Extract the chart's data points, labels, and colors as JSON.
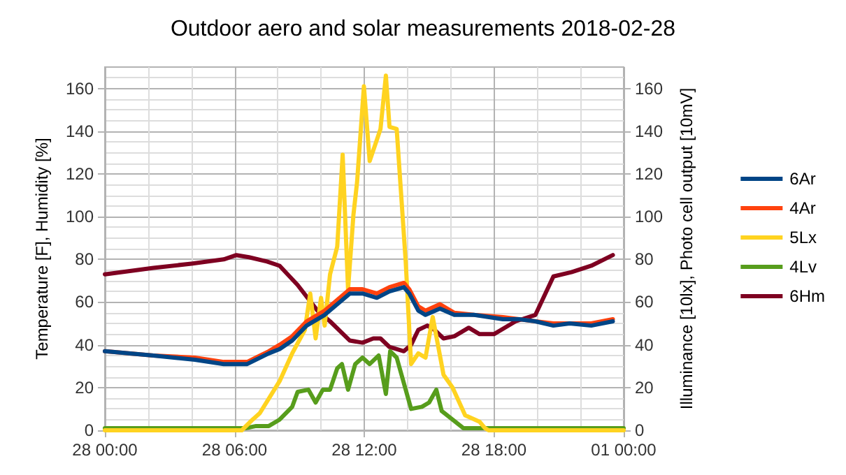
{
  "chart_data": {
    "type": "line",
    "title": "Outdoor aero and solar measurements 2018-02-28",
    "ylabel": "Temperature [F], Humidity [%]",
    "y2label": "Illuminance [10lx], Photo cell output [10mV]",
    "xlim": [
      "2018-02-28T00:00",
      "2018-03-01T00:00"
    ],
    "xticks": [
      {
        "value": "2018-02-28T00:00",
        "label": "28 00:00"
      },
      {
        "value": "2018-02-28T06:00",
        "label": "28 06:00"
      },
      {
        "value": "2018-02-28T12:00",
        "label": "28 12:00"
      },
      {
        "value": "2018-02-28T18:00",
        "label": "28 18:00"
      },
      {
        "value": "2018-03-01T00:00",
        "label": "01 00:00"
      }
    ],
    "ylim": [
      0,
      170
    ],
    "yticks": [
      0,
      20,
      40,
      60,
      80,
      100,
      120,
      140,
      160
    ],
    "y2lim": [
      0,
      170
    ],
    "y2ticks": [
      0,
      20,
      40,
      60,
      80,
      100,
      120,
      140,
      160
    ],
    "grid": true,
    "legend": "right",
    "marker": "none",
    "line_style": "solid",
    "series": [
      {
        "name": "6Ar",
        "color": "#004586",
        "x": [
          "2018-02-28T00:00",
          "2018-02-28T02:15",
          "2018-02-28T04:10",
          "2018-02-28T05:30",
          "2018-02-28T06:35",
          "2018-02-28T07:35",
          "2018-02-28T08:05",
          "2018-02-28T08:40",
          "2018-02-28T09:20",
          "2018-02-28T10:10",
          "2018-02-28T11:20",
          "2018-02-28T11:55",
          "2018-02-28T12:35",
          "2018-02-28T13:10",
          "2018-02-28T13:50",
          "2018-02-28T14:05",
          "2018-02-28T14:30",
          "2018-02-28T14:50",
          "2018-02-28T15:30",
          "2018-02-28T16:10",
          "2018-02-28T17:05",
          "2018-02-28T18:25",
          "2018-02-28T19:10",
          "2018-02-28T19:55",
          "2018-02-28T20:45",
          "2018-02-28T21:30",
          "2018-02-28T22:30",
          "2018-02-28T23:30"
        ],
        "values": [
          37,
          35,
          33,
          31,
          31,
          36,
          38,
          42,
          49,
          54,
          64,
          64,
          62,
          65,
          67,
          64,
          56,
          54,
          57,
          54,
          54,
          52,
          52,
          51,
          49,
          50,
          49,
          51
        ]
      },
      {
        "name": "4Ar",
        "color": "#ff420e",
        "x": [
          "2018-02-28T00:00",
          "2018-02-28T02:15",
          "2018-02-28T04:10",
          "2018-02-28T05:30",
          "2018-02-28T06:35",
          "2018-02-28T07:35",
          "2018-02-28T08:05",
          "2018-02-28T08:40",
          "2018-02-28T09:20",
          "2018-02-28T10:10",
          "2018-02-28T11:20",
          "2018-02-28T11:55",
          "2018-02-28T12:35",
          "2018-02-28T13:10",
          "2018-02-28T13:50",
          "2018-02-28T14:05",
          "2018-02-28T14:30",
          "2018-02-28T14:50",
          "2018-02-28T15:30",
          "2018-02-28T16:10",
          "2018-02-28T17:05",
          "2018-02-28T18:25",
          "2018-02-28T19:10",
          "2018-02-28T19:55",
          "2018-02-28T20:45",
          "2018-02-28T21:30",
          "2018-02-28T22:30",
          "2018-02-28T23:30"
        ],
        "values": [
          37,
          35,
          34,
          32,
          32,
          37,
          40,
          44,
          51,
          56,
          66,
          66,
          64,
          67,
          69,
          66,
          58,
          56,
          59,
          55,
          54,
          53,
          52,
          51,
          50,
          50,
          50,
          52
        ]
      },
      {
        "name": "5Lx",
        "color": "#ffd320",
        "x": [
          "2018-02-28T00:00",
          "2018-02-28T06:20",
          "2018-02-28T06:50",
          "2018-02-28T07:10",
          "2018-02-28T08:05",
          "2018-02-28T08:40",
          "2018-02-28T09:15",
          "2018-02-28T09:30",
          "2018-02-28T09:45",
          "2018-02-28T10:00",
          "2018-02-28T10:10",
          "2018-02-28T10:25",
          "2018-02-28T10:45",
          "2018-02-28T11:00",
          "2018-02-28T11:15",
          "2018-02-28T11:30",
          "2018-02-28T11:40",
          "2018-02-28T11:59",
          "2018-02-28T12:15",
          "2018-02-28T12:45",
          "2018-02-28T13:00",
          "2018-02-28T13:10",
          "2018-02-28T13:30",
          "2018-02-28T13:55",
          "2018-02-28T14:10",
          "2018-02-28T14:30",
          "2018-02-28T14:50",
          "2018-02-28T15:10",
          "2018-02-28T15:40",
          "2018-02-28T16:05",
          "2018-02-28T16:40",
          "2018-02-28T17:20",
          "2018-02-28T17:35",
          "2018-02-28T17:45",
          "2018-03-01T00:00"
        ],
        "values": [
          0,
          0,
          5,
          8,
          23,
          36,
          47,
          64,
          43,
          62,
          49,
          73,
          86,
          129,
          66,
          101,
          116,
          161,
          126,
          141,
          166,
          142,
          141,
          79,
          31,
          36,
          34,
          53,
          26,
          20,
          7,
          4,
          1,
          0,
          0
        ]
      },
      {
        "name": "4Lv",
        "color": "#579d1c",
        "x": [
          "2018-02-28T00:00",
          "2018-02-28T06:30",
          "2018-02-28T07:00",
          "2018-02-28T07:35",
          "2018-02-28T08:05",
          "2018-02-28T08:40",
          "2018-02-28T08:55",
          "2018-02-28T09:25",
          "2018-02-28T09:45",
          "2018-02-28T10:05",
          "2018-02-28T10:25",
          "2018-02-28T10:45",
          "2018-02-28T10:58",
          "2018-02-28T11:15",
          "2018-02-28T11:35",
          "2018-02-28T11:55",
          "2018-02-28T12:15",
          "2018-02-28T12:40",
          "2018-02-28T13:00",
          "2018-02-28T13:12",
          "2018-02-28T13:30",
          "2018-02-28T14:10",
          "2018-02-28T14:40",
          "2018-02-28T15:00",
          "2018-02-28T15:20",
          "2018-02-28T15:35",
          "2018-02-28T16:05",
          "2018-02-28T16:35",
          "2018-02-28T17:00",
          "2018-03-01T00:00"
        ],
        "values": [
          1,
          1,
          2,
          2,
          5,
          11,
          18,
          19,
          13,
          19,
          19,
          29,
          31,
          19,
          31,
          34,
          31,
          35,
          17,
          37,
          34,
          10,
          11,
          13,
          19,
          9,
          5,
          1,
          1,
          1
        ]
      },
      {
        "name": "6Hm",
        "color": "#7e0021",
        "x": [
          "2018-02-28T00:00",
          "2018-02-28T02:15",
          "2018-02-28T04:00",
          "2018-02-28T05:30",
          "2018-02-28T06:05",
          "2018-02-28T06:40",
          "2018-02-28T07:30",
          "2018-02-28T08:05",
          "2018-02-28T08:55",
          "2018-02-28T09:50",
          "2018-02-28T10:25",
          "2018-02-28T11:20",
          "2018-02-28T11:55",
          "2018-02-28T12:25",
          "2018-02-28T12:45",
          "2018-02-28T13:10",
          "2018-02-28T13:50",
          "2018-02-28T14:10",
          "2018-02-28T14:30",
          "2018-02-28T14:55",
          "2018-02-28T15:15",
          "2018-02-28T15:40",
          "2018-02-28T16:10",
          "2018-02-28T16:50",
          "2018-02-28T17:20",
          "2018-02-28T18:00",
          "2018-02-28T19:00",
          "2018-02-28T19:55",
          "2018-02-28T20:45",
          "2018-02-28T21:35",
          "2018-02-28T22:30",
          "2018-02-28T23:30"
        ],
        "values": [
          73,
          76,
          78,
          80,
          82,
          81,
          79,
          77,
          68,
          56,
          51,
          42,
          41,
          43,
          43,
          39,
          37,
          40,
          47,
          49,
          47,
          43,
          44,
          48,
          45,
          45,
          51,
          54,
          72,
          74,
          77,
          82
        ]
      }
    ]
  }
}
